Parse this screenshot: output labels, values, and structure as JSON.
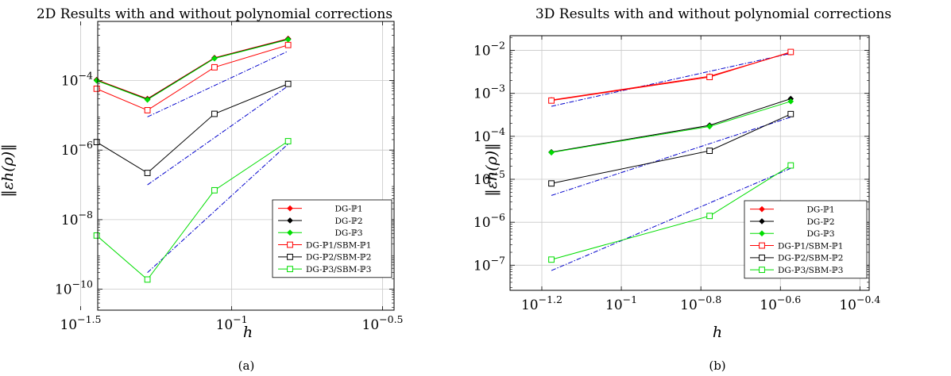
{
  "chart_data": [
    {
      "type": "line",
      "title": "2D Results with and without polynomial corrections",
      "xlabel": "h",
      "ylabel": "‖εh(ρ)‖",
      "xscale": "log",
      "yscale": "log",
      "xlim": [
        0.036,
        0.345
      ],
      "ylim": [
        2.5e-11,
        0.005
      ],
      "xticks": [
        {
          "value": 0.0316,
          "exp": "−1.5"
        },
        {
          "value": 0.1,
          "exp": "−1"
        },
        {
          "value": 0.316,
          "exp": "−0.5"
        }
      ],
      "yticks": [
        {
          "value": 0.0001,
          "exp": "−4"
        },
        {
          "value": 1e-06,
          "exp": "−6"
        },
        {
          "value": 1e-08,
          "exp": "−8"
        },
        {
          "value": 1e-10,
          "exp": "−10"
        }
      ],
      "grid": true,
      "legend_position": "bottom-right",
      "caption": "(a)",
      "series": [
        {
          "name": "DG-ℙ1",
          "color": "#ff0000",
          "marker": "diamond",
          "x": [
            0.0526,
            0.0357,
            0.0877,
            0.1538
          ],
          "y": [
            3e-05,
            0.000105,
            0.00045,
            0.0016
          ]
        },
        {
          "name": "DG-ℙ2",
          "color": "#000000",
          "marker": "diamond",
          "x": [
            0.0526,
            0.0357,
            0.0877,
            0.1538
          ],
          "y": [
            2.9e-05,
            0.000102,
            0.00044,
            0.00155
          ]
        },
        {
          "name": "DG-ℙ3",
          "color": "#00dd00",
          "marker": "diamond",
          "x": [
            0.0526,
            0.0357,
            0.0877,
            0.1538
          ],
          "y": [
            2.8e-05,
            0.0001,
            0.00043,
            0.0015
          ]
        },
        {
          "name": "DG-ℙ1/SBM-ℙ1",
          "color": "#ff0000",
          "marker": "square",
          "x": [
            0.0526,
            0.0357,
            0.0877,
            0.1538
          ],
          "y": [
            1.4e-05,
            5.8e-05,
            0.00024,
            0.00105
          ]
        },
        {
          "name": "DG-ℙ2/SBM-ℙ2",
          "color": "#000000",
          "marker": "square",
          "x": [
            0.0526,
            0.0357,
            0.0877,
            0.1538
          ],
          "y": [
            2.2e-07,
            1.7e-06,
            1.1e-05,
            8e-05
          ]
        },
        {
          "name": "DG-ℙ3/SBM-ℙ3",
          "color": "#00dd00",
          "marker": "square",
          "x": [
            0.0526,
            0.0357,
            0.0877,
            0.1538
          ],
          "y": [
            1.9e-10,
            3.5e-09,
            7e-08,
            1.8e-06
          ]
        }
      ],
      "reference_lines": [
        {
          "color": "#0000cc",
          "x": [
            0.0526,
            0.1538
          ],
          "y": [
            9e-06,
            0.0007
          ]
        },
        {
          "color": "#0000cc",
          "x": [
            0.0526,
            0.1538
          ],
          "y": [
            1e-07,
            7e-05
          ]
        },
        {
          "color": "#0000cc",
          "x": [
            0.0526,
            0.1538
          ],
          "y": [
            3e-10,
            1.5e-06
          ]
        }
      ]
    },
    {
      "type": "line",
      "title": "3D Results with and without polynomial corrections",
      "xlabel": "h",
      "ylabel": "‖εh(ρ)‖",
      "xscale": "log",
      "yscale": "log",
      "xlim": [
        0.0525,
        0.42
      ],
      "ylim": [
        2.6e-08,
        0.022
      ],
      "xticks": [
        {
          "value": 0.0631,
          "exp": "−1.2"
        },
        {
          "value": 0.1,
          "exp": "−1"
        },
        {
          "value": 0.1585,
          "exp": "−0.8"
        },
        {
          "value": 0.2512,
          "exp": "−0.6"
        },
        {
          "value": 0.3981,
          "exp": "−0.4"
        }
      ],
      "yticks": [
        {
          "value": 0.01,
          "exp": "−2"
        },
        {
          "value": 0.001,
          "exp": "−3"
        },
        {
          "value": 0.0001,
          "exp": "−4"
        },
        {
          "value": 1e-05,
          "exp": "−5"
        },
        {
          "value": 1e-06,
          "exp": "−6"
        },
        {
          "value": 1e-07,
          "exp": "−7"
        }
      ],
      "grid": true,
      "legend_position": "bottom-right",
      "caption": "(b)",
      "series": [
        {
          "name": "DG-ℙ1",
          "color": "#ff0000",
          "marker": "diamond",
          "x": [
            0.0667,
            0.1667,
            0.2667
          ],
          "y": [
            0.0007,
            0.0025,
            0.009
          ]
        },
        {
          "name": "DG-ℙ2",
          "color": "#000000",
          "marker": "diamond",
          "x": [
            0.0667,
            0.1667,
            0.2667
          ],
          "y": [
            4.3e-05,
            0.00018,
            0.00075
          ]
        },
        {
          "name": "DG-ℙ3",
          "color": "#00dd00",
          "marker": "diamond",
          "x": [
            0.0667,
            0.1667,
            0.2667
          ],
          "y": [
            4.2e-05,
            0.00017,
            0.00065
          ]
        },
        {
          "name": "DG-ℙ1/SBM-ℙ1",
          "color": "#ff0000",
          "marker": "square",
          "x": [
            0.0667,
            0.1667,
            0.2667
          ],
          "y": [
            0.00068,
            0.0024,
            0.0092
          ]
        },
        {
          "name": "DG-ℙ2/SBM-ℙ2",
          "color": "#000000",
          "marker": "square",
          "x": [
            0.0667,
            0.1667,
            0.2667
          ],
          "y": [
            8e-06,
            4.6e-05,
            0.00033
          ]
        },
        {
          "name": "DG-ℙ3/SBM-ℙ3",
          "color": "#00dd00",
          "marker": "square",
          "x": [
            0.0667,
            0.1667,
            0.2667
          ],
          "y": [
            1.35e-07,
            1.4e-06,
            2.1e-05
          ]
        }
      ],
      "reference_lines": [
        {
          "color": "#0000cc",
          "x": [
            0.0667,
            0.2667
          ],
          "y": [
            0.0005,
            0.0085
          ]
        },
        {
          "color": "#0000cc",
          "x": [
            0.0667,
            0.2667
          ],
          "y": [
            4.2e-06,
            0.00028
          ]
        },
        {
          "color": "#0000cc",
          "x": [
            0.0667,
            0.2667
          ],
          "y": [
            7.5e-08,
            1.8e-05
          ]
        }
      ]
    }
  ]
}
